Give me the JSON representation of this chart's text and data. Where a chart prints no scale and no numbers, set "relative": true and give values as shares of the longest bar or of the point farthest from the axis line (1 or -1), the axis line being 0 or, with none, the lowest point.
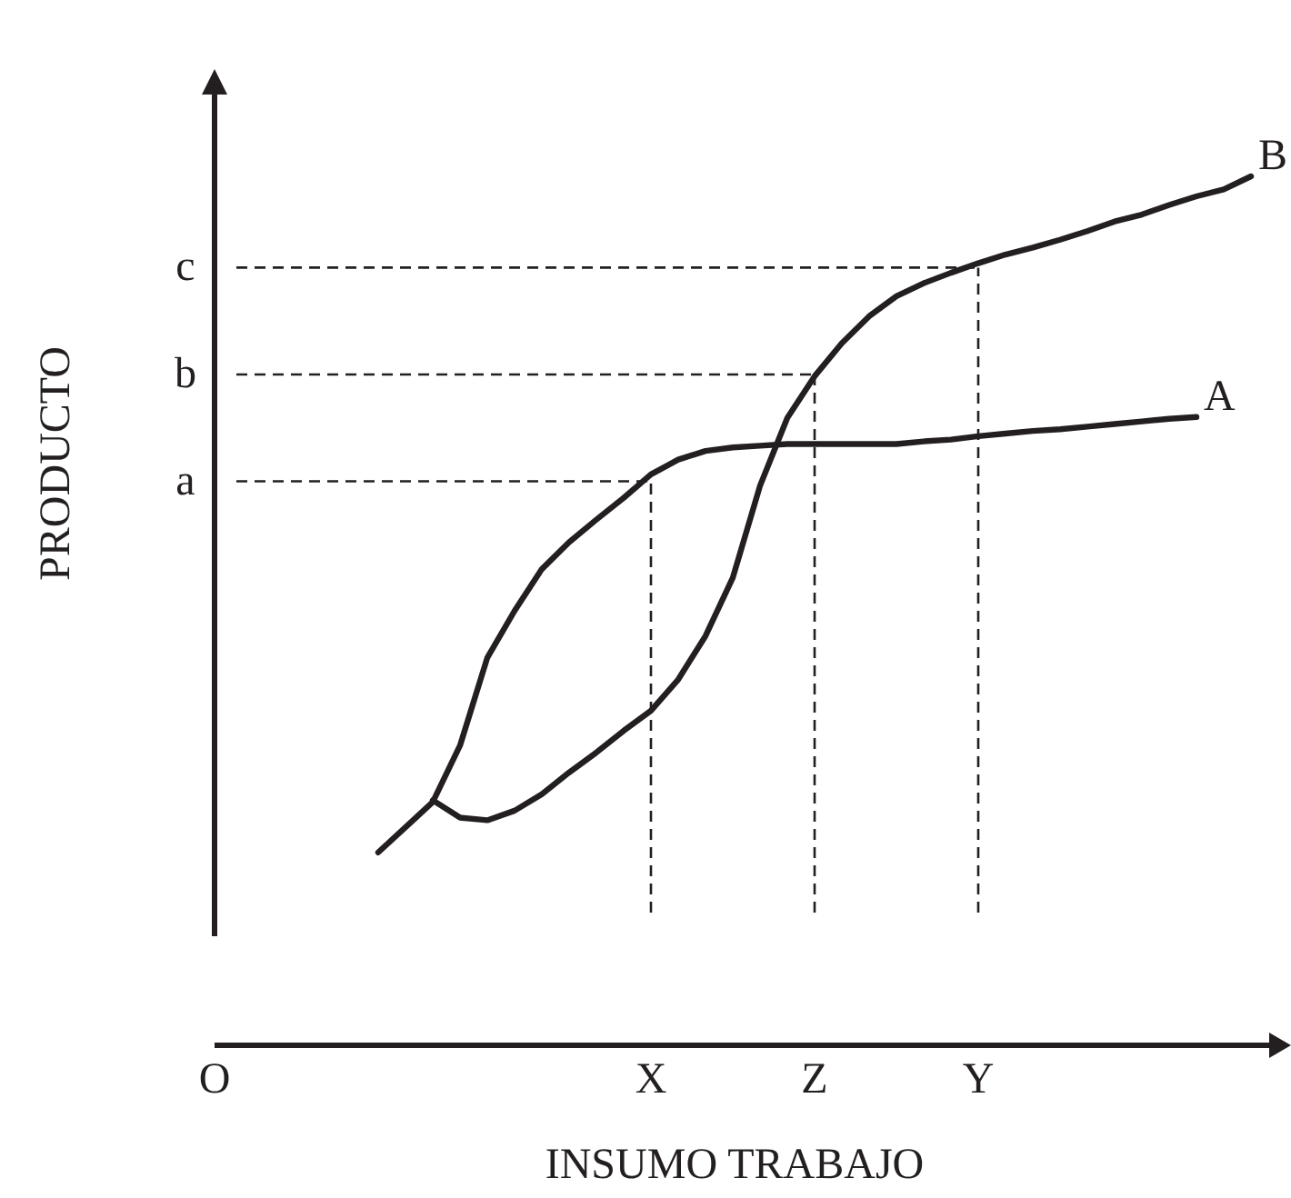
{
  "chart_data": {
    "type": "line",
    "xlabel": "INSUMO TRABAJO",
    "ylabel": "PRODUCTO",
    "relative": true,
    "categories": [
      "O",
      null,
      null,
      null,
      null,
      null,
      null,
      null,
      null,
      null,
      null,
      null,
      null,
      null,
      null,
      null,
      "X",
      null,
      null,
      null,
      null,
      null,
      "Z",
      null,
      null,
      null,
      null,
      null,
      "Y",
      null,
      null,
      null,
      null,
      null,
      null,
      null,
      null,
      null,
      null
    ],
    "grid": false,
    "legend": false,
    "marker": "none",
    "line_style": "solid",
    "series": [
      {
        "name": "A",
        "color": "#231f20",
        "values": [
          null,
          null,
          null,
          null,
          null,
          null,
          0.222,
          0.251,
          0.28,
          0.345,
          0.446,
          0.5,
          0.548,
          0.579,
          0.605,
          0.63,
          0.657,
          0.674,
          0.684,
          0.688,
          0.69,
          0.692,
          0.692,
          0.692,
          0.692,
          0.692,
          0.695,
          0.697,
          0.701,
          0.704,
          0.707,
          0.709,
          0.712,
          0.715,
          0.718,
          0.721,
          0.723,
          null,
          null
        ]
      },
      {
        "name": "B",
        "color": "#231f20",
        "values": [
          null,
          null,
          null,
          null,
          null,
          null,
          null,
          null,
          0.282,
          0.262,
          0.259,
          0.27,
          0.289,
          0.314,
          0.337,
          0.362,
          0.385,
          0.421,
          0.471,
          0.538,
          0.644,
          0.722,
          0.77,
          0.808,
          0.839,
          0.862,
          0.877,
          0.889,
          0.9,
          0.91,
          0.918,
          0.927,
          0.937,
          0.948,
          0.956,
          0.967,
          0.977,
          0.985,
          1
        ]
      }
    ],
    "ref_lines": [
      {
        "axis": "x",
        "value": "X",
        "line_style": "dashed",
        "color": "#231f20"
      },
      {
        "axis": "x",
        "value": "Z",
        "line_style": "dashed",
        "color": "#231f20"
      },
      {
        "axis": "x",
        "value": "Y",
        "line_style": "dashed",
        "color": "#231f20"
      },
      {
        "axis": "y",
        "value": 0.649,
        "label": "a",
        "line_style": "dashed",
        "color": "#231f20"
      },
      {
        "axis": "y",
        "value": 0.772,
        "label": "b",
        "line_style": "dashed",
        "color": "#231f20"
      },
      {
        "axis": "y",
        "value": 0.895,
        "label": "c",
        "line_style": "dashed",
        "color": "#231f20"
      }
    ]
  }
}
